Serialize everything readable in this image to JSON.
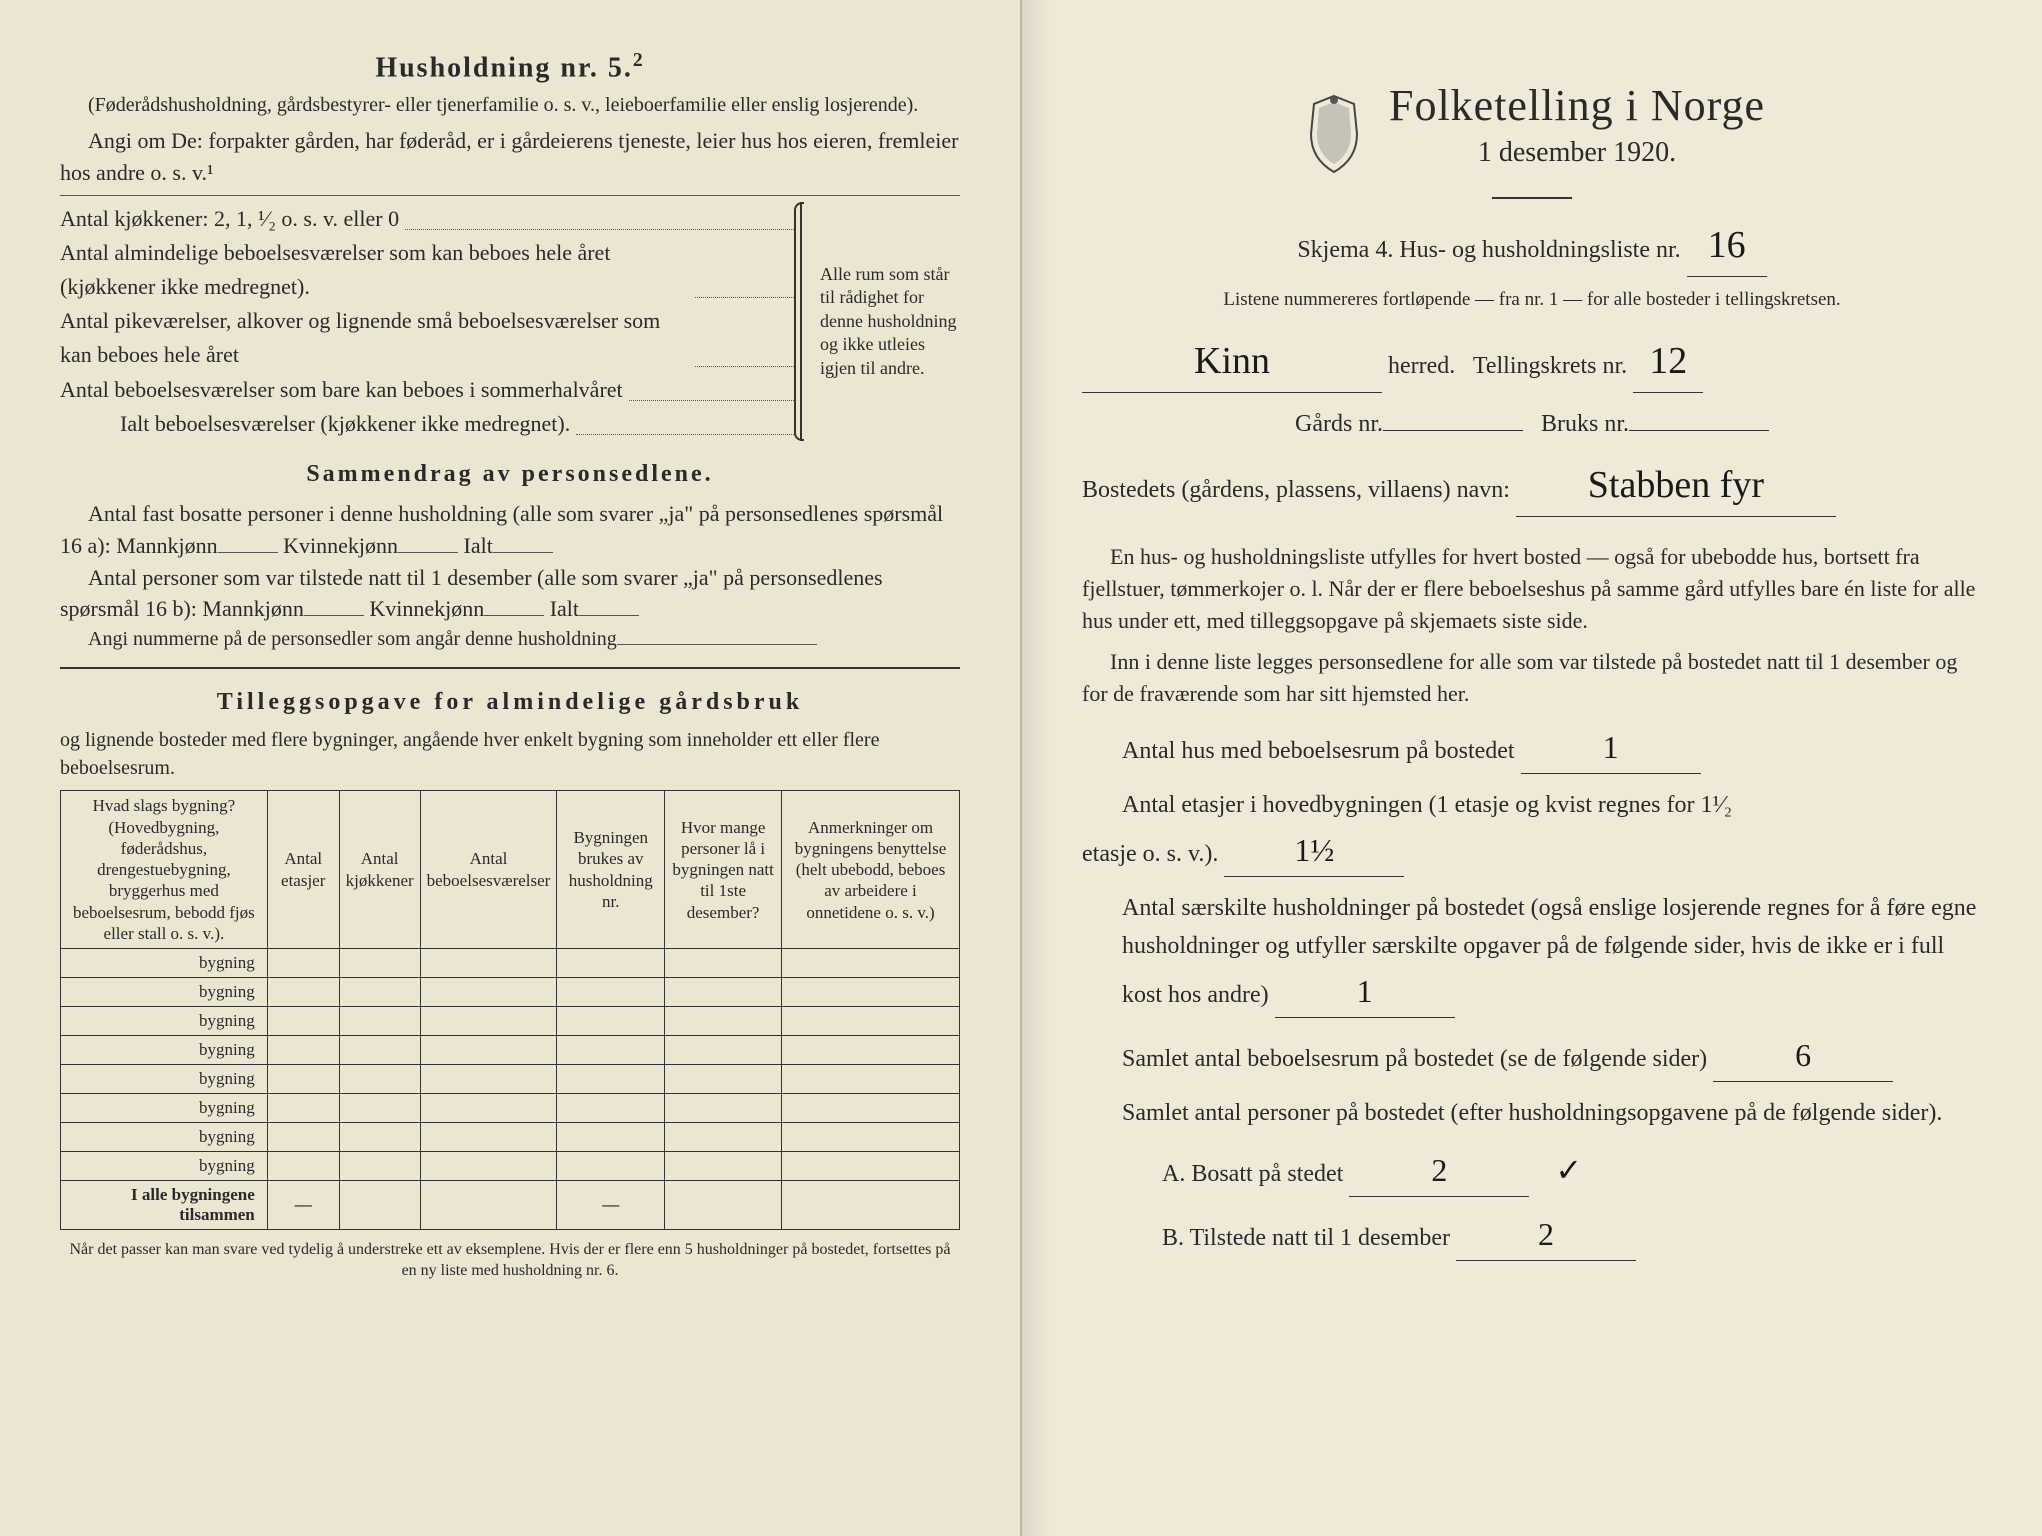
{
  "left": {
    "heading": "Husholdning nr. 5.",
    "heading_sup": "2",
    "paren1": "(Føderådshusholdning, gårdsbestyrer- eller tjenerfamilie o. s. v., leieboerfamilie eller enslig losjerende).",
    "angi": "Angi om De: forpakter gården, har føderåd, er i gårdeierens tjeneste, leier hus hos eieren, fremleier hos andre o. s. v.¹",
    "kjokken_label": "Antal kjøkkener: 2, 1, ¹⁄₂ o. s. v. eller 0",
    "rooms": [
      "Antal almindelige beboelsesværelser som kan beboes hele året (kjøkkener ikke medregnet).",
      "Antal pikeværelser, alkover og lignende små beboelsesværelser som kan beboes hele året",
      "Antal beboelsesværelser som bare kan beboes i sommerhalvåret",
      "Ialt beboelsesværelser (kjøkkener ikke medregnet)."
    ],
    "brace_text": "Alle rum som står til rådighet for denne husholdning og ikke utleies igjen til andre.",
    "sammendrag_head": "Sammendrag av personsedlene.",
    "samm_p1": "Antal fast bosatte personer i denne husholdning (alle som svarer „ja\" på personsedlenes spørsmål 16 a): Mannkjønn",
    "samm_kv": "Kvinnekjønn",
    "samm_ialt": "Ialt",
    "samm_p2": "Antal personer som var tilstede natt til 1 desember (alle som svarer „ja\" på personsedlenes spørsmål 16 b): Mannkjønn",
    "samm_p3": "Angi nummerne på de personsedler som angår denne husholdning",
    "tillegg_head": "Tilleggsopgave for almindelige gårdsbruk",
    "tillegg_sub": "og lignende bosteder med flere bygninger, angående hver enkelt bygning som inneholder ett eller flere beboelsesrum.",
    "table": {
      "headers": [
        "Hvad slags bygning?\n(Hovedbygning, føderådshus, drengestuebygning, bryggerhus med beboelsesrum, bebodd fjøs eller stall o. s. v.).",
        "Antal etasjer",
        "Antal kjøkkener",
        "Antal beboelsesværelser",
        "Bygningen brukes av husholdning nr.",
        "Hvor mange personer lå i bygningen natt til 1ste desember?",
        "Anmerkninger om bygningens benyttelse (helt ubebodd, beboes av arbeidere i onnetidene o. s. v.)"
      ],
      "row_label": "bygning",
      "row_count": 8,
      "total_label": "I alle bygningene tilsammen"
    },
    "footnote": "Når det passer kan man svare ved tydelig å understreke ett av eksemplene.\nHvis der er flere enn 5 husholdninger på bostedet, fortsettes på en ny liste med husholdning nr. 6."
  },
  "right": {
    "title": "Folketelling i Norge",
    "date": "1 desember 1920.",
    "skjema": "Skjema 4.  Hus- og husholdningsliste nr.",
    "skjema_val": "16",
    "liste_note": "Listene nummereres fortløpende — fra nr. 1 — for alle bosteder i tellingskretsen.",
    "herred_val": "Kinn",
    "herred_label": "herred.",
    "krets_label": "Tellingskrets nr.",
    "krets_val": "12",
    "gards_label": "Gårds nr.",
    "bruks_label": "Bruks nr.",
    "bosted_label": "Bostedets (gårdens, plassens, villaens) navn:",
    "bosted_val": "Stabben fyr",
    "para1": "En hus- og husholdningsliste utfylles for hvert bosted — også for ubebodde hus, bortsett fra fjellstuer, tømmerkojer o. l. Når der er flere beboelseshus på samme gård utfylles bare én liste for alle hus under ett, med tilleggsopgave på skjemaets siste side.",
    "para2": "Inn i denne liste legges personsedlene for alle som var tilstede på bostedet natt til 1 desember og for de fraværende som har sitt hjemsted her.",
    "q1": "Antal hus med beboelsesrum på bostedet",
    "q1_val": "1",
    "q2a": "Antal etasjer i hovedbygningen (1 etasje og kvist regnes for 1¹⁄₂",
    "q2b": "etasje o. s. v.).",
    "q2_val": "1½",
    "q3": "Antal særskilte husholdninger på bostedet (også enslige losjerende regnes for å føre egne husholdninger og utfyller særskilte opgaver på de følgende sider, hvis de ikke er i full kost hos andre)",
    "q3_val": "1",
    "q4": "Samlet antal beboelsesrum på bostedet (se de følgende sider)",
    "q4_val": "6",
    "q5": "Samlet antal personer på bostedet (efter husholdningsopgavene på de følgende sider).",
    "q5a": "A.  Bosatt på stedet",
    "q5a_val": "2",
    "q5a_check": "✓",
    "q5b": "B.  Tilstede natt til 1 desember",
    "q5b_val": "2"
  },
  "colors": {
    "paper": "#ede8d6",
    "ink": "#2a2a2a",
    "hand": "#1a1a1a"
  }
}
